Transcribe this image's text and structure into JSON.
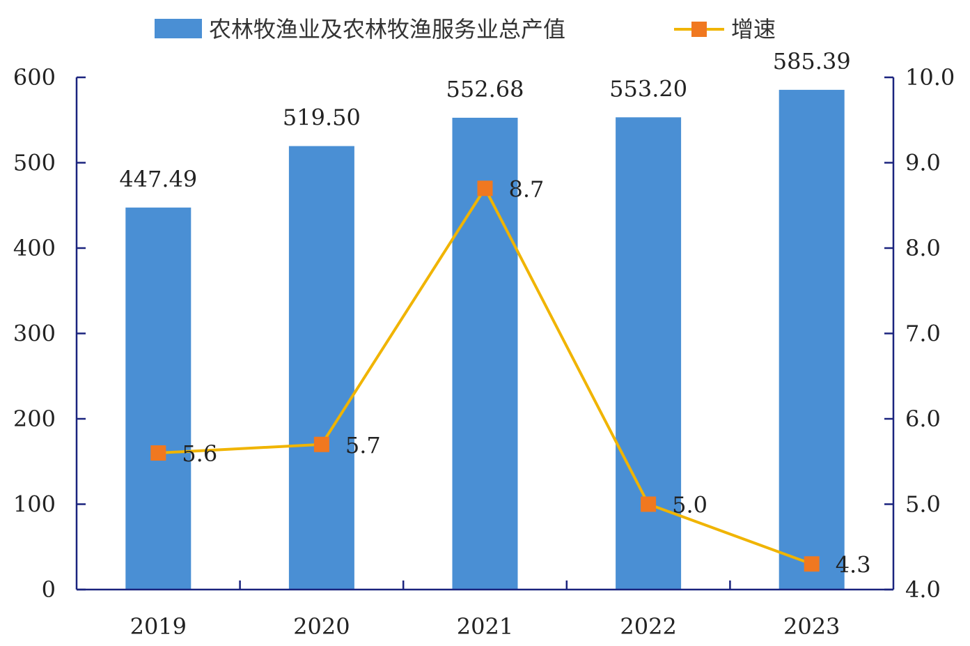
{
  "chart_data": {
    "type": "bar",
    "categories": [
      "2019",
      "2020",
      "2021",
      "2022",
      "2023"
    ],
    "series": [
      {
        "name": "农林牧渔业及农林牧渔服务业总产值",
        "type": "bar",
        "axis": "left",
        "values": [
          447.49,
          519.5,
          552.68,
          553.2,
          585.39
        ],
        "labels": [
          "447.49",
          "519.50",
          "552.68",
          "553.20",
          "585.39"
        ],
        "color": "#4a8fd4"
      },
      {
        "name": "增速",
        "type": "line",
        "axis": "right",
        "values": [
          5.6,
          5.7,
          8.7,
          5.0,
          4.3
        ],
        "labels": [
          "5.6",
          "5.7",
          "8.7",
          "5.0",
          "4.3"
        ],
        "color": "#f0b400",
        "marker_color": "#f07820"
      }
    ],
    "left_axis": {
      "range": [
        0,
        600
      ],
      "ticks": [
        0,
        100,
        200,
        300,
        400,
        500,
        600
      ],
      "tick_labels": [
        "0",
        "100",
        "200",
        "300",
        "400",
        "500",
        "600"
      ]
    },
    "right_axis": {
      "range": [
        4.0,
        10.0
      ],
      "ticks": [
        4.0,
        5.0,
        6.0,
        7.0,
        8.0,
        9.0,
        10.0
      ],
      "tick_labels": [
        "4.0",
        "5.0",
        "6.0",
        "7.0",
        "8.0",
        "9.0",
        "10.0"
      ]
    },
    "axis_color": "#1a237e",
    "grid": false,
    "legend_position": "top-center"
  }
}
